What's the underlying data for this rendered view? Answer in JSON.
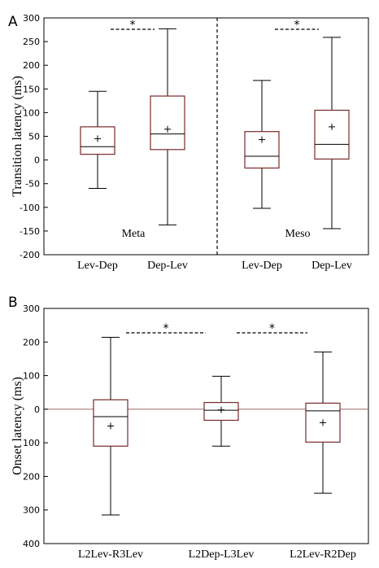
{
  "chart_data": [
    {
      "panel": "A",
      "type": "box",
      "ylabel": "Transition latency (ms)",
      "ylim": [
        -200,
        300
      ],
      "yticks": [
        -200,
        -150,
        -100,
        -50,
        0,
        50,
        100,
        150,
        200,
        250,
        300
      ],
      "grid": false,
      "groups": [
        "Meta",
        "Meso"
      ],
      "categories": [
        "Lev-Dep",
        "Dep-Lev",
        "Lev-Dep",
        "Dep-Lev"
      ],
      "boxes": [
        {
          "group": "Meta",
          "label": "Lev-Dep",
          "min": -60,
          "q1": 12,
          "median": 28,
          "q3": 70,
          "max": 145,
          "mean": 45
        },
        {
          "group": "Meta",
          "label": "Dep-Lev",
          "min": -137,
          "q1": 22,
          "median": 55,
          "q3": 135,
          "max": 277,
          "mean": 65
        },
        {
          "group": "Meso",
          "label": "Lev-Dep",
          "min": -102,
          "q1": -17,
          "median": 8,
          "q3": 60,
          "max": 168,
          "mean": 43
        },
        {
          "group": "Meso",
          "label": "Dep-Lev",
          "min": -145,
          "q1": 2,
          "median": 33,
          "q3": 105,
          "max": 259,
          "mean": 70
        }
      ],
      "significance": [
        {
          "between": [
            0,
            1
          ],
          "label": "*"
        },
        {
          "between": [
            2,
            3
          ],
          "label": "*"
        }
      ],
      "box_color": "#7a2a2a"
    },
    {
      "panel": "B",
      "type": "box",
      "ylabel": "Onset latency (ms)",
      "ylim": [
        -400,
        300
      ],
      "yticks": [
        -400,
        -300,
        -200,
        -100,
        0,
        100,
        200,
        300
      ],
      "ytick_labels": [
        "400",
        "300",
        "200",
        "100",
        "0",
        "100",
        "200",
        "300"
      ],
      "zero_line": true,
      "grid": false,
      "categories": [
        "L2Lev-R3Lev",
        "L2Dep-L3Lev",
        "L2Lev-R2Dep"
      ],
      "boxes": [
        {
          "label": "L2Lev-R3Lev",
          "min": -315,
          "q1": -110,
          "median": -22,
          "q3": 28,
          "max": 214,
          "mean": -50
        },
        {
          "label": "L2Dep-L3Lev",
          "min": -110,
          "q1": -33,
          "median": -3,
          "q3": 20,
          "max": 98,
          "mean": -2
        },
        {
          "label": "L2Lev-R2Dep",
          "min": -250,
          "q1": -98,
          "median": -5,
          "q3": 18,
          "max": 170,
          "mean": -40
        }
      ],
      "significance": [
        {
          "between": [
            0,
            1
          ],
          "label": "*"
        },
        {
          "between": [
            1,
            2
          ],
          "label": "*"
        }
      ],
      "box_color": "#7a2a2a"
    }
  ]
}
